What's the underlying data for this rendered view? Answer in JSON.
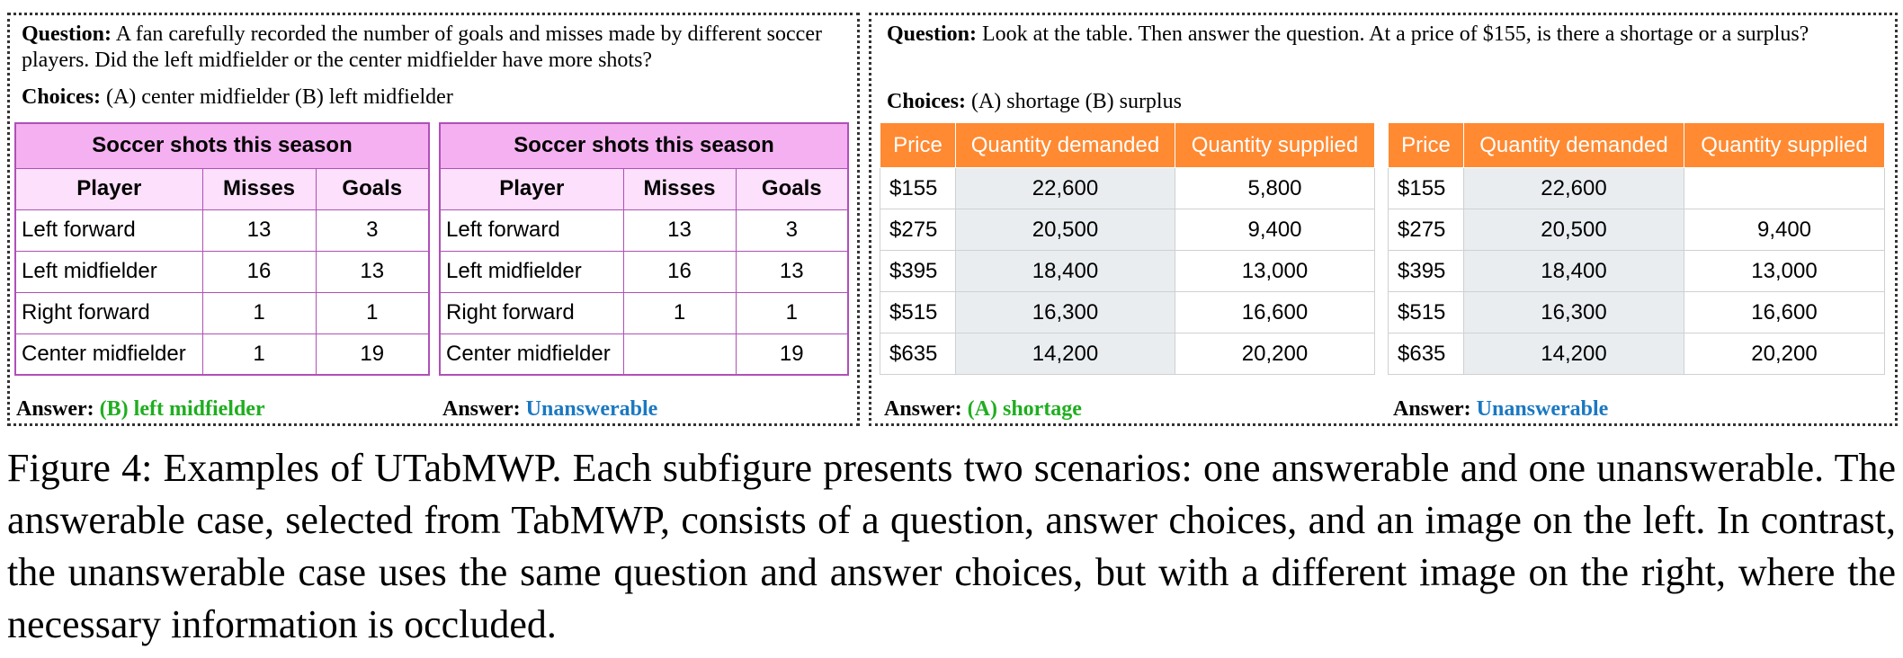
{
  "left": {
    "question_label": "Question:",
    "question_text": "A fan carefully recorded the number of goals and misses made by different soccer players. Did the left midfielder or the center midfielder have more shots?",
    "choices_label": "Choices:",
    "choices_text": "(A) center midfielder (B) left midfielder",
    "table_title": "Soccer shots this season",
    "columns": [
      "Player",
      "Misses",
      "Goals"
    ],
    "rows_answerable": [
      [
        "Left forward",
        "13",
        "3"
      ],
      [
        "Left midfielder",
        "16",
        "13"
      ],
      [
        "Right forward",
        "1",
        "1"
      ],
      [
        "Center midfielder",
        "1",
        "19"
      ]
    ],
    "rows_unanswerable": [
      [
        "Left forward",
        "13",
        "3"
      ],
      [
        "Left midfielder",
        "16",
        "13"
      ],
      [
        "Right forward",
        "1",
        "1"
      ],
      [
        "Center midfielder",
        "",
        "19"
      ]
    ],
    "answer_label": "Answer:",
    "answer_answerable": "(B) left midfielder",
    "answer_unanswerable": "Unanswerable"
  },
  "right": {
    "question_label": "Question:",
    "question_text": "Look at the table. Then answer the question. At a price of $155, is there a shortage or a surplus?",
    "choices_label": "Choices:",
    "choices_text": "(A) shortage (B) surplus",
    "columns": [
      "Price",
      "Quantity demanded",
      "Quantity supplied"
    ],
    "rows_answerable": [
      [
        "$155",
        "22,600",
        "5,800"
      ],
      [
        "$275",
        "20,500",
        "9,400"
      ],
      [
        "$395",
        "18,400",
        "13,000"
      ],
      [
        "$515",
        "16,300",
        "16,600"
      ],
      [
        "$635",
        "14,200",
        "20,200"
      ]
    ],
    "rows_unanswerable": [
      [
        "$155",
        "22,600",
        ""
      ],
      [
        "$275",
        "20,500",
        "9,400"
      ],
      [
        "$395",
        "18,400",
        "13,000"
      ],
      [
        "$515",
        "16,300",
        "16,600"
      ],
      [
        "$635",
        "14,200",
        "20,200"
      ]
    ],
    "answer_label": "Answer:",
    "answer_answerable": "(A) shortage",
    "answer_unanswerable": "Unanswerable"
  },
  "caption": "Figure 4: Examples of UTabMWP. Each subfigure presents two scenarios: one answerable and one unanswerable. The answerable case, selected from TabMWP, consists of a question, answer choices, and an image on the left. In contrast, the unanswerable case uses the same question and answer choices, but with a different image on the right, where the necessary information is occluded.",
  "colors": {
    "soccer_caption_bg": "#f4b0f0",
    "soccer_header_bg": "#fde0fb",
    "soccer_border": "#b050b8",
    "price_header_bg": "#ff8a32",
    "demand_col_bg": "#e9edf0",
    "answer_green": "#1fae1f",
    "answer_blue": "#1a78c2"
  }
}
